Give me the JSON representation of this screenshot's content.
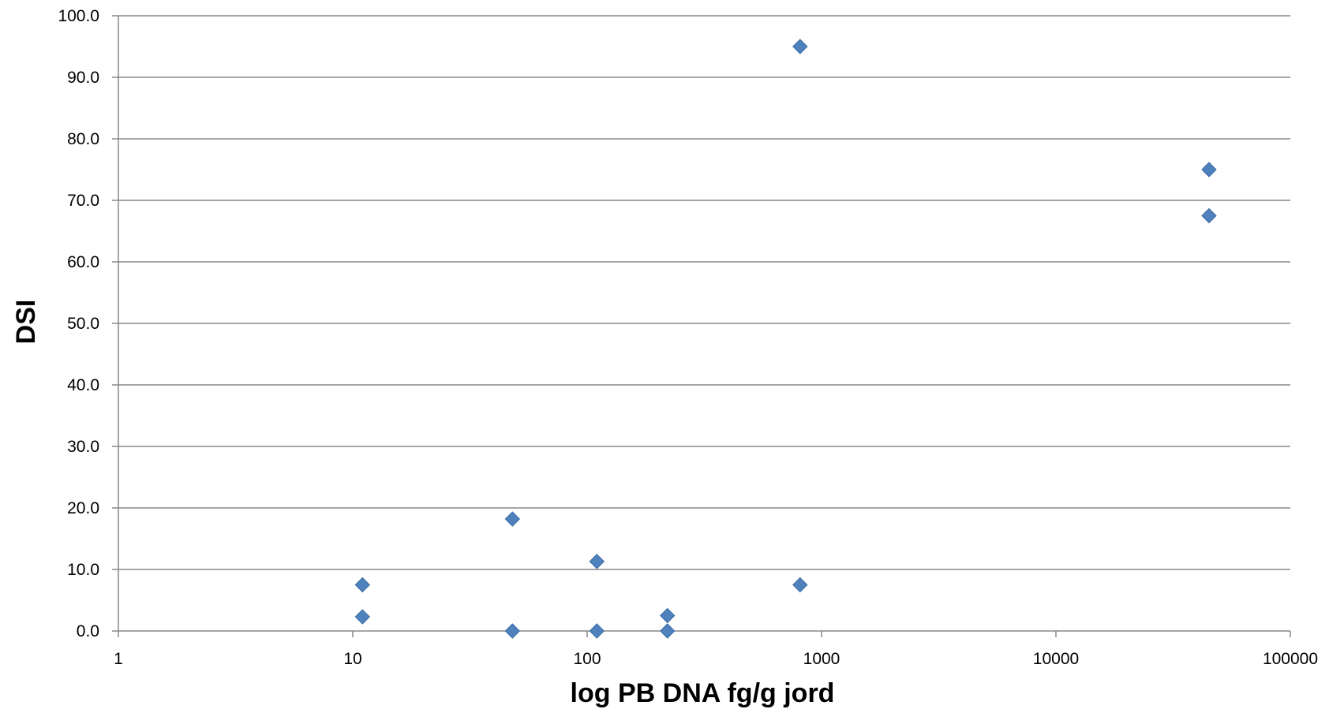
{
  "chart_data": {
    "type": "scatter",
    "title": "",
    "xlabel": "log PB DNA fg/g jord",
    "ylabel": "DSI",
    "x_scale": "log",
    "xlim": [
      1,
      100000
    ],
    "ylim": [
      0,
      100
    ],
    "x_ticks": [
      1,
      10,
      100,
      1000,
      10000,
      100000
    ],
    "x_tick_labels": [
      "1",
      "10",
      "100",
      "1000",
      "10000",
      "100000"
    ],
    "y_ticks": [
      0,
      10,
      20,
      30,
      40,
      50,
      60,
      70,
      80,
      90,
      100
    ],
    "y_tick_labels": [
      "0.0",
      "10.0",
      "20.0",
      "30.0",
      "40.0",
      "50.0",
      "60.0",
      "70.0",
      "80.0",
      "90.0",
      "100.0"
    ],
    "grid": "horizontal",
    "legend": "none",
    "marker": "diamond",
    "colors": {
      "marker": "#4F81BD",
      "grid": "#888888",
      "axis": "#888888"
    },
    "series": [
      {
        "points": [
          {
            "x": 11,
            "y": 7.5
          },
          {
            "x": 11,
            "y": 2.3
          },
          {
            "x": 48,
            "y": 18.2
          },
          {
            "x": 48,
            "y": 0.0
          },
          {
            "x": 110,
            "y": 11.3
          },
          {
            "x": 110,
            "y": 0.0
          },
          {
            "x": 220,
            "y": 2.5
          },
          {
            "x": 220,
            "y": 0.0
          },
          {
            "x": 810,
            "y": 95.0
          },
          {
            "x": 810,
            "y": 7.5
          },
          {
            "x": 45000,
            "y": 75.0
          },
          {
            "x": 45000,
            "y": 67.5
          }
        ]
      }
    ]
  }
}
